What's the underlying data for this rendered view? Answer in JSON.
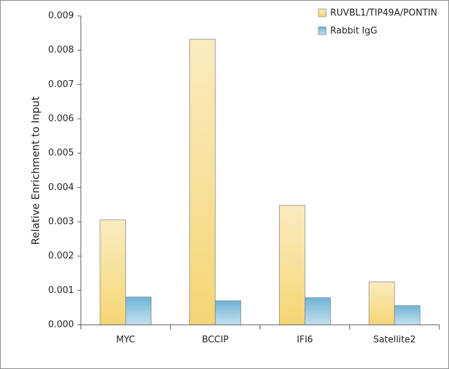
{
  "chart_data": {
    "type": "bar",
    "ylabel": "Relative Enrichment to Input",
    "categories": [
      "MYC",
      "BCCIP",
      "IFI6",
      "Satellite2"
    ],
    "series": [
      {
        "name": "RUVBL1/TIP49A/PONTIN",
        "color": "#f5d574",
        "values": [
          0.00306,
          0.00832,
          0.00348,
          0.00125
        ]
      },
      {
        "name": "Rabbit IgG",
        "color": "#6fb3d6",
        "values": [
          0.00081,
          0.0007,
          0.00079,
          0.00056
        ]
      }
    ],
    "ylim": [
      0,
      0.009
    ],
    "yticks": [
      {
        "value": 0,
        "label": "0.000"
      },
      0.001,
      0.002,
      0.003,
      0.004,
      0.005,
      0.006,
      0.007,
      0.008,
      0.009
    ],
    "legend": "top-right"
  }
}
